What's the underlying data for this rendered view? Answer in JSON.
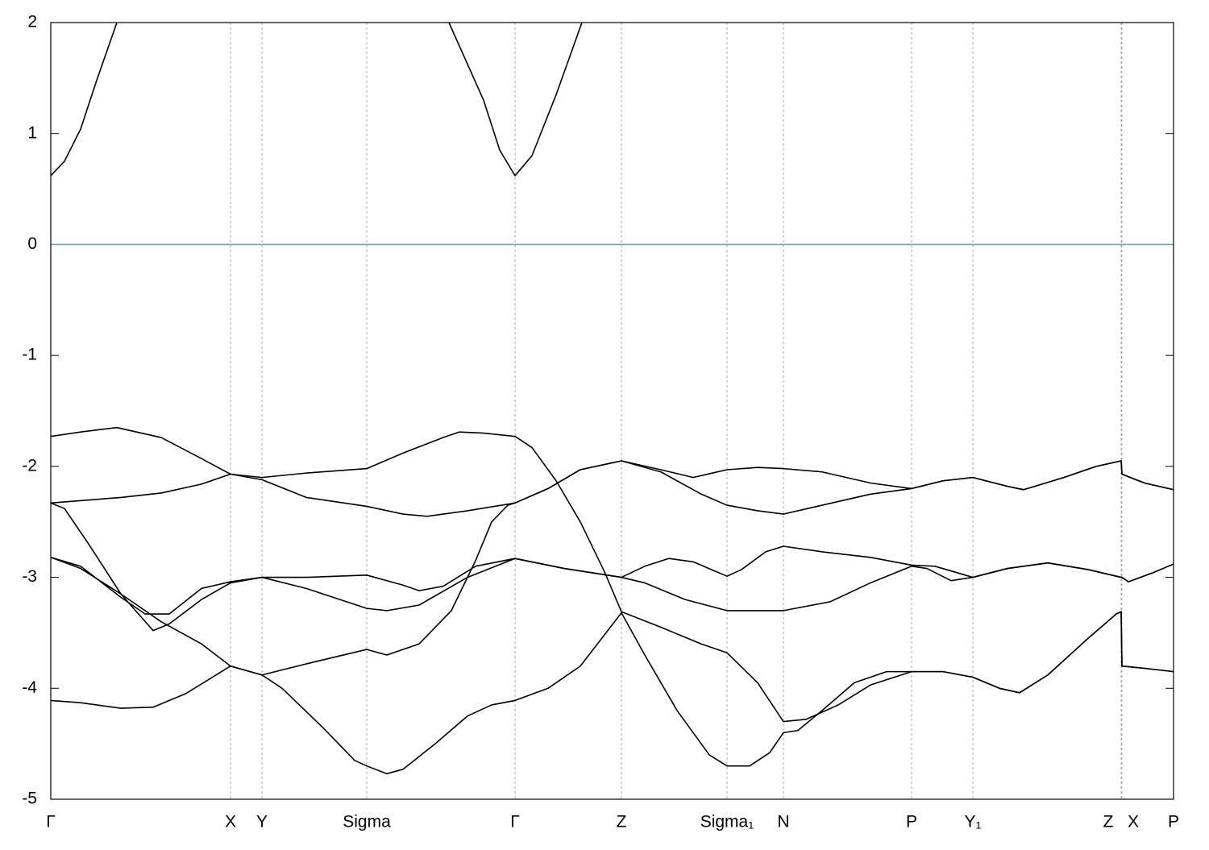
{
  "chart_data": {
    "type": "line",
    "xlim": [
      0,
      13.93
    ],
    "ylim": [
      -5,
      2
    ],
    "yticks": [
      -5,
      -4,
      -3,
      -2,
      -1,
      0,
      1,
      2
    ],
    "xticks": [
      {
        "value": 0,
        "label": "Γ"
      },
      {
        "value": 2.23,
        "label": "X"
      },
      {
        "value": 2.62,
        "label": "Y"
      },
      {
        "value": 3.92,
        "label": "Sigma"
      },
      {
        "value": 5.76,
        "label": "Γ"
      },
      {
        "value": 7.08,
        "label": "Z"
      },
      {
        "value": 8.39,
        "label": "Sigma₁"
      },
      {
        "value": 9.09,
        "label": "N"
      },
      {
        "value": 10.68,
        "label": "P"
      },
      {
        "value": 11.44,
        "label": "Y₁"
      },
      {
        "value": 13.28,
        "label": "Z"
      },
      {
        "value": 13.29,
        "label": "X"
      },
      {
        "value": 13.93,
        "label": "P"
      }
    ],
    "grid": true,
    "fermi_level": {
      "value": 0,
      "color": "#5aaccc"
    },
    "series": [
      {
        "color": "#000000",
        "x": [
          0,
          0.17,
          0.37,
          0.57,
          0.82
        ],
        "values": [
          0.62,
          0.75,
          1.04,
          1.48,
          2.0
        ]
      },
      {
        "color": "#000000",
        "x": [
          4.94,
          5.37,
          5.57,
          5.76,
          5.97,
          6.27,
          6.59
        ],
        "values": [
          2.0,
          1.3,
          0.85,
          0.62,
          0.8,
          1.35,
          2.0
        ]
      },
      {
        "color": "#000000",
        "x": [
          0,
          0.37,
          0.82,
          1.37,
          1.87,
          2.23,
          2.62,
          3.17,
          3.92,
          4.37,
          4.67,
          5.17,
          5.76,
          6.17,
          6.57,
          7.08,
          7.57,
          8.07,
          8.39,
          8.77,
          9.09,
          9.57,
          10.17,
          10.68,
          11.07,
          11.44,
          11.87,
          12.07,
          12.57,
          12.97,
          13.28,
          13.29,
          13.57,
          13.93
        ],
        "values": [
          -1.73,
          -1.69,
          -1.65,
          -1.74,
          -1.93,
          -2.07,
          -2.12,
          -2.28,
          -2.36,
          -2.43,
          -2.45,
          -2.4,
          -2.33,
          -2.2,
          -2.03,
          -1.95,
          -2.05,
          -2.25,
          -2.35,
          -2.4,
          -2.43,
          -2.35,
          -2.25,
          -2.2,
          -2.13,
          -2.1,
          -2.18,
          -2.21,
          -2.1,
          -2.0,
          -1.95,
          -2.07,
          -2.15,
          -2.21
        ]
      },
      {
        "color": "#000000",
        "x": [
          0,
          0.37,
          0.87,
          1.37,
          1.87,
          2.23,
          2.62,
          3.17,
          3.92,
          4.17,
          4.57,
          4.97,
          5.27,
          5.47,
          5.67,
          5.76,
          6.17,
          6.57,
          7.08,
          7.57,
          7.97,
          8.39,
          8.77,
          9.09,
          9.57,
          10.17,
          10.68,
          11.07,
          11.44,
          11.87,
          12.07,
          12.57,
          12.97,
          13.28,
          13.29,
          13.57,
          13.93
        ],
        "values": [
          -2.82,
          -2.92,
          -3.15,
          -3.4,
          -3.6,
          -3.8,
          -3.88,
          -3.78,
          -3.65,
          -3.7,
          -3.6,
          -3.3,
          -2.85,
          -2.5,
          -2.35,
          -2.33,
          -2.2,
          -2.03,
          -1.95,
          -2.03,
          -2.1,
          -2.03,
          -2.01,
          -2.02,
          -2.05,
          -2.15,
          -2.2,
          -2.13,
          -2.1,
          -2.18,
          -2.21,
          -2.1,
          -2.0,
          -1.95,
          -2.07,
          -2.15,
          -2.21
        ]
      },
      {
        "color": "#000000",
        "x": [
          0,
          0.87,
          1.37,
          1.87,
          2.23,
          2.62,
          3.17,
          3.92,
          4.37,
          4.87,
          5.07,
          5.37,
          5.76,
          5.97,
          6.27,
          6.57,
          6.87,
          7.08,
          7.57,
          8.07,
          8.39,
          8.77,
          9.09,
          9.37,
          9.77,
          10.17,
          10.68,
          11.07,
          11.44,
          11.77,
          12.02,
          12.37,
          12.87,
          13.22,
          13.28,
          13.29,
          13.57,
          13.93
        ],
        "values": [
          -2.33,
          -2.28,
          -2.24,
          -2.16,
          -2.07,
          -2.1,
          -2.06,
          -2.02,
          -1.88,
          -1.74,
          -1.69,
          -1.7,
          -1.73,
          -1.83,
          -2.13,
          -2.5,
          -2.95,
          -3.31,
          -3.45,
          -3.6,
          -3.68,
          -3.95,
          -4.3,
          -4.28,
          -4.15,
          -3.97,
          -3.85,
          -3.85,
          -3.9,
          -4.0,
          -4.04,
          -3.88,
          -3.55,
          -3.33,
          -3.31,
          -3.8,
          -3.82,
          -3.85
        ]
      },
      {
        "color": "#000000",
        "x": [
          0,
          0.37,
          0.87,
          1.27,
          1.67,
          2.23,
          2.62,
          2.87,
          3.37,
          3.77,
          3.92,
          4.17,
          4.37,
          4.77,
          5.17,
          5.47,
          5.76,
          6.17,
          6.57,
          7.08,
          7.37,
          7.77,
          8.17,
          8.39,
          8.67,
          8.92,
          9.09,
          9.27,
          9.57,
          9.97,
          10.37,
          10.68,
          11.07,
          11.44,
          11.77,
          12.02,
          12.37,
          12.87,
          13.22,
          13.28,
          13.29,
          13.57,
          13.93
        ],
        "values": [
          -4.11,
          -4.13,
          -4.18,
          -4.17,
          -4.05,
          -3.8,
          -3.88,
          -4.0,
          -4.35,
          -4.65,
          -4.7,
          -4.77,
          -4.73,
          -4.5,
          -4.25,
          -4.15,
          -4.11,
          -4.0,
          -3.8,
          -3.32,
          -3.7,
          -4.2,
          -4.6,
          -4.7,
          -4.7,
          -4.58,
          -4.4,
          -4.38,
          -4.2,
          -3.95,
          -3.85,
          -3.85,
          -3.85,
          -3.9,
          -4.0,
          -4.04,
          -3.88,
          -3.55,
          -3.33,
          -3.31,
          -3.8,
          -3.82,
          -3.85
        ]
      },
      {
        "color": "#000000",
        "x": [
          0,
          0.17,
          0.47,
          0.87,
          1.27,
          1.47,
          1.87,
          2.23,
          2.62,
          3.17,
          3.92,
          4.37,
          4.57,
          4.87,
          5.27,
          5.76,
          6.37,
          7.08,
          7.37,
          7.67,
          7.97,
          8.39,
          8.57,
          8.87,
          9.09,
          9.57,
          10.17,
          10.68,
          10.97,
          11.44,
          11.87,
          12.37,
          12.87,
          13.28,
          13.29,
          13.37,
          13.67,
          13.93
        ],
        "values": [
          -2.33,
          -2.38,
          -2.7,
          -3.15,
          -3.48,
          -3.42,
          -3.2,
          -3.05,
          -3.0,
          -3.0,
          -2.98,
          -3.07,
          -3.12,
          -3.08,
          -2.9,
          -2.83,
          -2.92,
          -3.0,
          -2.9,
          -2.83,
          -2.86,
          -2.99,
          -2.93,
          -2.77,
          -2.72,
          -2.77,
          -2.82,
          -2.89,
          -2.9,
          -3.0,
          -2.92,
          -2.87,
          -2.93,
          -3.0,
          -3.0,
          -3.04,
          -2.96,
          -2.88
        ]
      },
      {
        "color": "#000000",
        "x": [
          0,
          0.37,
          0.87,
          1.17,
          1.47,
          1.87,
          2.23,
          2.62,
          3.17,
          3.92,
          4.17,
          4.57,
          5.17,
          5.76,
          6.37,
          7.08,
          7.37,
          7.87,
          8.39,
          9.09,
          9.67,
          10.17,
          10.68,
          10.87,
          11.17,
          11.44,
          11.87,
          12.37,
          12.87,
          13.28,
          13.29,
          13.37,
          13.67,
          13.93
        ],
        "values": [
          -2.82,
          -2.9,
          -3.18,
          -3.33,
          -3.33,
          -3.1,
          -3.04,
          -3.0,
          -3.1,
          -3.28,
          -3.3,
          -3.25,
          -3.0,
          -2.83,
          -2.92,
          -3.0,
          -3.05,
          -3.2,
          -3.3,
          -3.3,
          -3.22,
          -3.05,
          -2.9,
          -2.92,
          -3.03,
          -3.0,
          -2.92,
          -2.87,
          -2.93,
          -3.0,
          -3.0,
          -3.04,
          -2.96,
          -2.88
        ]
      }
    ]
  }
}
